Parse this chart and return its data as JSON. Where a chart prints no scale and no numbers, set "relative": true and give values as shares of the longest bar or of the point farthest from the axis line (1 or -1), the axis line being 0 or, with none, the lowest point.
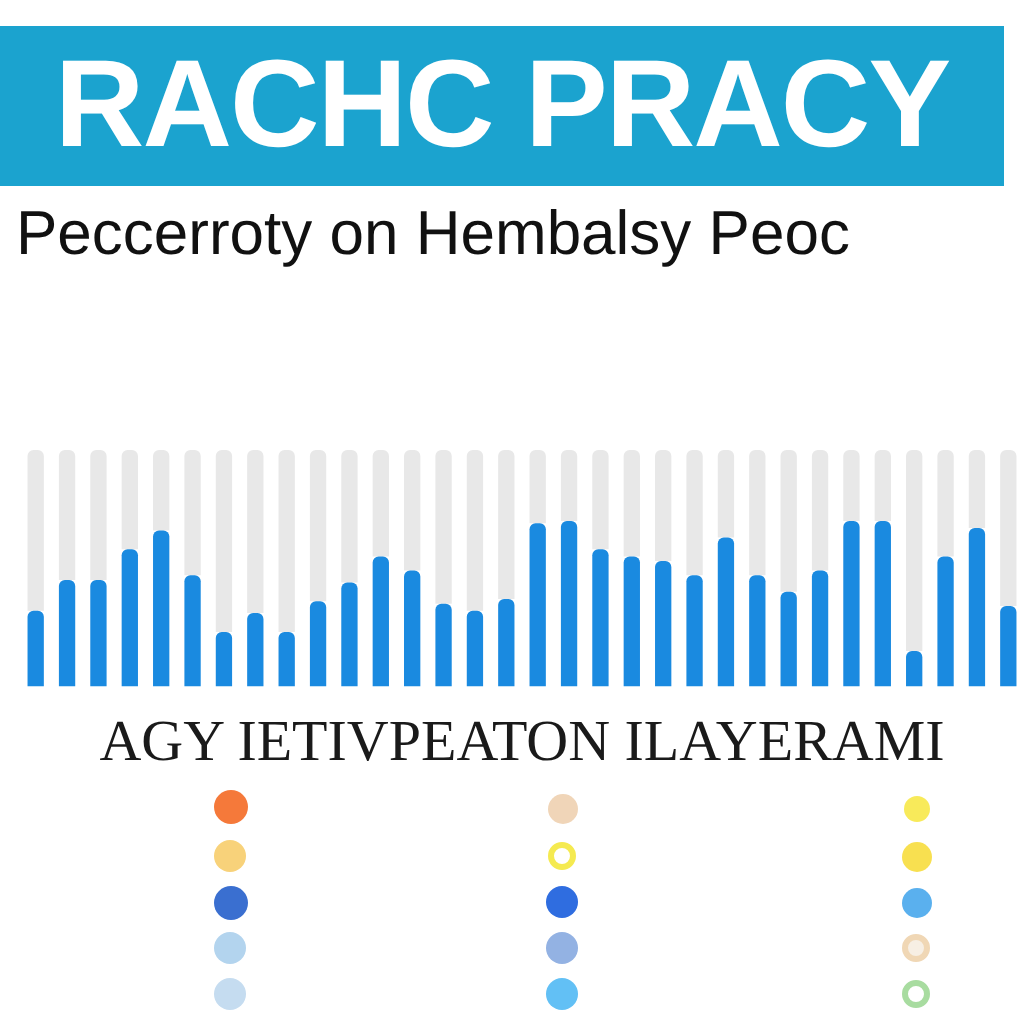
{
  "chart_data": {
    "type": "bar",
    "title": "RACHC PRACY",
    "subtitle": "Peccerroty on Hembalsy Peoc",
    "xlabel": "AGY IETIVPEATON ILAYERAMI",
    "categories": [
      null,
      null,
      null,
      null,
      null,
      null,
      null,
      null,
      null,
      null,
      null,
      null,
      null,
      null,
      null,
      null,
      null,
      null,
      null,
      null,
      null,
      null,
      null,
      null,
      null,
      null,
      null,
      null,
      null,
      null,
      null,
      null
    ],
    "relative": true,
    "stacked": true,
    "series": [
      {
        "color": "#1a8ae0",
        "values": [
          0.32,
          0.45,
          0.45,
          0.58,
          0.66,
          0.47,
          0.23,
          0.31,
          0.23,
          0.36,
          0.44,
          0.55,
          0.49,
          0.35,
          0.32,
          0.37,
          0.69,
          0.7,
          0.58,
          0.55,
          0.53,
          0.47,
          0.63,
          0.47,
          0.4,
          0.49,
          0.7,
          0.7,
          0.15,
          0.55,
          0.67,
          0.34
        ]
      },
      {
        "color": "#e8e8e8",
        "values": [
          0.68,
          0.55,
          0.55,
          0.42,
          0.34,
          0.53,
          0.77,
          0.69,
          0.77,
          0.64,
          0.56,
          0.45,
          0.51,
          0.65,
          0.68,
          0.63,
          0.31,
          0.3,
          0.42,
          0.45,
          0.47,
          0.53,
          0.37,
          0.53,
          0.6,
          0.51,
          0.3,
          0.3,
          0.85,
          0.45,
          0.33,
          0.66
        ]
      }
    ]
  }
}
